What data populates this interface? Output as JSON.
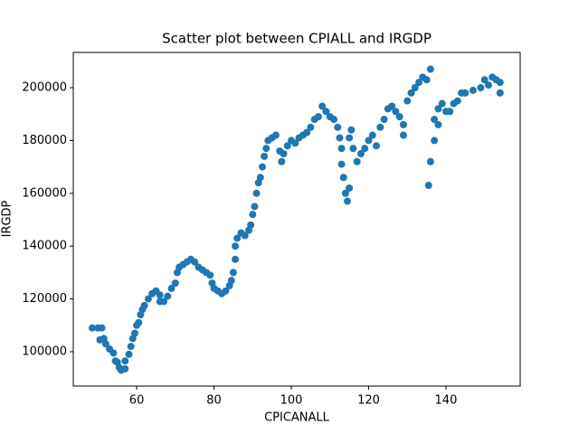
{
  "chart_data": {
    "type": "scatter",
    "title": "Scatter plot between CPIALL and IRGDP",
    "xlabel": "CPICANALL",
    "ylabel": "IRGDP",
    "x": [
      48.5,
      50,
      51,
      50.5,
      51.5,
      52,
      53,
      54,
      54.5,
      55,
      55.5,
      56,
      57,
      57,
      58,
      58.5,
      59,
      59.5,
      60,
      60.5,
      61,
      61.5,
      62,
      63,
      64,
      65,
      66,
      66,
      67,
      68,
      69,
      70,
      70.5,
      71,
      72,
      73,
      74,
      75,
      76,
      77,
      78,
      79,
      79.5,
      80,
      81,
      82,
      83,
      84,
      84.5,
      85,
      85.5,
      85.5,
      86,
      87,
      88,
      89,
      89.5,
      90,
      90.5,
      91,
      91.5,
      92,
      92.5,
      93,
      93.5,
      94,
      95,
      96,
      97,
      97.5,
      98,
      99,
      100,
      101,
      102,
      103,
      104,
      105,
      106,
      107,
      108,
      109,
      110,
      111,
      112,
      112.5,
      113,
      113,
      113.5,
      114,
      114.5,
      115,
      115,
      115.5,
      116,
      117,
      118,
      119,
      120,
      121,
      122,
      123,
      124,
      125,
      126,
      127,
      128,
      129,
      129,
      130,
      131,
      132,
      133,
      134,
      135,
      136,
      135.5,
      136,
      137,
      137,
      138,
      138,
      139,
      140,
      141,
      142,
      143,
      144,
      145,
      147,
      149,
      150,
      151,
      152,
      153,
      154,
      154
    ],
    "series": [
      {
        "name": "IRGDP",
        "color": "#1f77b4",
        "values": [
          109000,
          109000,
          109000,
          104500,
          105000,
          103000,
          101000,
          99500,
          96500,
          96000,
          94000,
          93000,
          93500,
          96500,
          99000,
          102000,
          105000,
          107000,
          110000,
          111000,
          114000,
          116000,
          117500,
          120000,
          122000,
          123000,
          121500,
          119000,
          119000,
          121000,
          124000,
          126000,
          130000,
          132000,
          133000,
          134000,
          135000,
          134000,
          132000,
          131000,
          130000,
          129000,
          126000,
          124000,
          123000,
          122000,
          123000,
          125000,
          127000,
          130000,
          135000,
          140000,
          143000,
          145000,
          144000,
          146000,
          148000,
          152000,
          155000,
          160000,
          164000,
          166000,
          170000,
          174000,
          177000,
          180000,
          181000,
          182000,
          176000,
          172000,
          175000,
          178000,
          180000,
          179000,
          181000,
          182000,
          183000,
          185000,
          188000,
          189000,
          193000,
          191000,
          189000,
          188000,
          185000,
          181000,
          177000,
          171000,
          166000,
          160000,
          157000,
          162000,
          181000,
          184000,
          177000,
          172000,
          175000,
          177000,
          180000,
          182000,
          178000,
          185000,
          188000,
          192000,
          193000,
          191000,
          189000,
          186000,
          182000,
          195000,
          198000,
          200000,
          202000,
          204000,
          203000,
          207000,
          163000,
          172000,
          180000,
          188000,
          186000,
          192000,
          194000,
          191000,
          191000,
          194000,
          195000,
          198000,
          198000,
          199000,
          200000,
          203000,
          201000,
          204000,
          203000,
          198000,
          202000
        ]
      }
    ],
    "xlim": [
      43.6,
      159.2
    ],
    "ylim": [
      86986,
      213356
    ],
    "xticks": [
      60,
      80,
      100,
      120,
      140
    ],
    "yticks": [
      100000,
      120000,
      140000,
      160000,
      180000,
      200000
    ]
  }
}
